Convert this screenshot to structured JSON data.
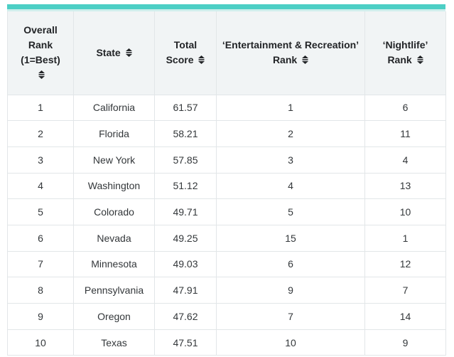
{
  "accent_color": "#4ccfc5",
  "accent_color_light": "#cfeeec",
  "header_bg_color": "#f1f4f5",
  "table": {
    "columns": [
      {
        "id": "overall-rank",
        "label": "Overall\nRank\n(1=Best)\n",
        "sortable": true
      },
      {
        "id": "state",
        "label": "State ",
        "sortable": true
      },
      {
        "id": "total-score",
        "label": "Total\nScore ",
        "sortable": true
      },
      {
        "id": "entertainment-recreation-rank",
        "label": "‘Entertainment & Recreation’\nRank ",
        "sortable": true
      },
      {
        "id": "nightlife-rank",
        "label": "‘Nightlife’\nRank ",
        "sortable": true
      }
    ],
    "rows": [
      [
        "1",
        "California",
        "61.57",
        "1",
        "6"
      ],
      [
        "2",
        "Florida",
        "58.21",
        "2",
        "11"
      ],
      [
        "3",
        "New York",
        "57.85",
        "3",
        "4"
      ],
      [
        "4",
        "Washington",
        "51.12",
        "4",
        "13"
      ],
      [
        "5",
        "Colorado",
        "49.71",
        "5",
        "10"
      ],
      [
        "6",
        "Nevada",
        "49.25",
        "15",
        "1"
      ],
      [
        "7",
        "Minnesota",
        "49.03",
        "6",
        "12"
      ],
      [
        "8",
        "Pennsylvania",
        "47.91",
        "9",
        "7"
      ],
      [
        "9",
        "Oregon",
        "47.62",
        "7",
        "14"
      ],
      [
        "10",
        "Texas",
        "47.51",
        "10",
        "9"
      ]
    ]
  },
  "chart_data": {
    "type": "table",
    "title": "",
    "columns": [
      "Overall Rank (1=Best)",
      "State",
      "Total Score",
      "'Entertainment & Recreation' Rank",
      "'Nightlife' Rank"
    ],
    "rows": [
      [
        1,
        "California",
        61.57,
        1,
        6
      ],
      [
        2,
        "Florida",
        58.21,
        2,
        11
      ],
      [
        3,
        "New York",
        57.85,
        3,
        4
      ],
      [
        4,
        "Washington",
        51.12,
        4,
        13
      ],
      [
        5,
        "Colorado",
        49.71,
        5,
        10
      ],
      [
        6,
        "Nevada",
        49.25,
        15,
        1
      ],
      [
        7,
        "Minnesota",
        49.03,
        6,
        12
      ],
      [
        8,
        "Pennsylvania",
        47.91,
        9,
        7
      ],
      [
        9,
        "Oregon",
        47.62,
        7,
        14
      ],
      [
        10,
        "Texas",
        47.51,
        10,
        9
      ]
    ]
  }
}
